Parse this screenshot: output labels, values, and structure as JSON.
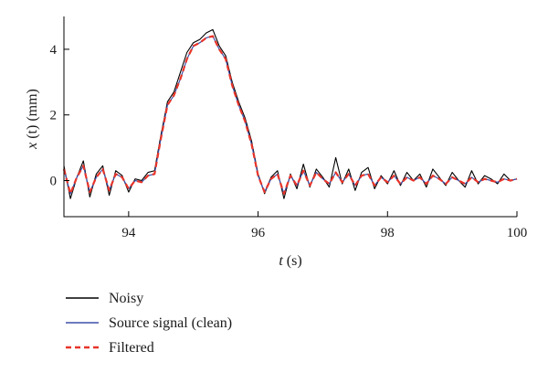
{
  "chart_data": {
    "type": "line",
    "title": "",
    "xlabel": "t (s)",
    "ylabel": "x (t) (mm)",
    "xlim": [
      93,
      100
    ],
    "ylim": [
      -1.1,
      5.0
    ],
    "xticks": [
      94,
      96,
      98,
      100
    ],
    "yticks": [
      0,
      2,
      4
    ],
    "grid": false,
    "legend_position": "bottom-left, below plot",
    "series": [
      {
        "name": "Noisy",
        "color": "#000000",
        "style": "solid",
        "x": [
          93.0,
          93.1,
          93.2,
          93.3,
          93.4,
          93.5,
          93.6,
          93.7,
          93.8,
          93.9,
          94.0,
          94.1,
          94.2,
          94.3,
          94.4,
          94.5,
          94.6,
          94.7,
          94.8,
          94.9,
          95.0,
          95.1,
          95.2,
          95.3,
          95.4,
          95.5,
          95.6,
          95.7,
          95.8,
          95.9,
          96.0,
          96.1,
          96.2,
          96.3,
          96.4,
          96.5,
          96.6,
          96.7,
          96.8,
          96.9,
          97.0,
          97.1,
          97.2,
          97.3,
          97.4,
          97.5,
          97.6,
          97.7,
          97.8,
          97.9,
          98.0,
          98.1,
          98.2,
          98.3,
          98.4,
          98.5,
          98.6,
          98.7,
          98.8,
          98.9,
          99.0,
          99.1,
          99.2,
          99.3,
          99.4,
          99.5,
          99.6,
          99.7,
          99.8,
          99.9,
          100.0
        ],
        "y": [
          0.45,
          -0.55,
          0.1,
          0.6,
          -0.5,
          0.2,
          0.45,
          -0.45,
          0.3,
          0.15,
          -0.35,
          0.05,
          0.0,
          0.25,
          0.3,
          1.4,
          2.4,
          2.7,
          3.3,
          3.9,
          4.2,
          4.3,
          4.5,
          4.6,
          4.1,
          3.8,
          3.0,
          2.4,
          1.9,
          1.2,
          0.2,
          -0.4,
          0.1,
          0.3,
          -0.55,
          0.2,
          -0.25,
          0.5,
          -0.2,
          0.35,
          0.1,
          -0.2,
          0.7,
          -0.1,
          0.35,
          -0.3,
          0.25,
          0.4,
          -0.25,
          0.15,
          -0.1,
          0.3,
          -0.15,
          0.25,
          0.0,
          0.2,
          -0.2,
          0.35,
          0.1,
          -0.15,
          0.25,
          0.0,
          -0.2,
          0.3,
          -0.1,
          0.15,
          0.05,
          -0.1,
          0.2,
          0.0,
          0.05
        ]
      },
      {
        "name": "Source signal (clean)",
        "color": "#3f4fa8",
        "style": "solid",
        "x": [
          93.0,
          93.1,
          93.2,
          93.3,
          93.4,
          93.5,
          93.6,
          93.7,
          93.8,
          93.9,
          94.0,
          94.1,
          94.2,
          94.3,
          94.4,
          94.5,
          94.6,
          94.7,
          94.8,
          94.9,
          95.0,
          95.1,
          95.2,
          95.3,
          95.4,
          95.5,
          95.6,
          95.7,
          95.8,
          95.9,
          96.0,
          96.1,
          96.2,
          96.3,
          96.4,
          96.5,
          96.6,
          96.7,
          96.8,
          96.9,
          97.0,
          97.1,
          97.2,
          97.3,
          97.4,
          97.5,
          97.6,
          97.7,
          97.8,
          97.9,
          98.0,
          98.1,
          98.2,
          98.3,
          98.4,
          98.5,
          98.6,
          98.7,
          98.8,
          98.9,
          99.0,
          99.1,
          99.2,
          99.3,
          99.4,
          99.5,
          99.6,
          99.7,
          99.8,
          99.9,
          100.0
        ],
        "y": [
          0.35,
          -0.4,
          0.1,
          0.45,
          -0.35,
          0.1,
          0.35,
          -0.3,
          0.2,
          0.1,
          -0.25,
          0.0,
          -0.05,
          0.15,
          0.2,
          1.3,
          2.3,
          2.6,
          3.1,
          3.7,
          4.1,
          4.2,
          4.35,
          4.4,
          4.0,
          3.7,
          2.9,
          2.3,
          1.8,
          1.1,
          0.15,
          -0.35,
          0.05,
          0.2,
          -0.4,
          0.15,
          -0.15,
          0.3,
          -0.15,
          0.25,
          0.05,
          -0.1,
          0.25,
          -0.05,
          0.2,
          -0.15,
          0.15,
          0.2,
          -0.15,
          0.1,
          -0.05,
          0.15,
          -0.1,
          0.1,
          0.0,
          0.1,
          -0.1,
          0.15,
          0.05,
          -0.1,
          0.1,
          0.0,
          -0.1,
          0.1,
          -0.05,
          0.05,
          0.0,
          -0.05,
          0.05,
          0.0,
          0.05
        ]
      },
      {
        "name": "Filtered",
        "color": "#e8342a",
        "style": "dashed",
        "x": [
          93.0,
          93.1,
          93.2,
          93.3,
          93.4,
          93.5,
          93.6,
          93.7,
          93.8,
          93.9,
          94.0,
          94.1,
          94.2,
          94.3,
          94.4,
          94.5,
          94.6,
          94.7,
          94.8,
          94.9,
          95.0,
          95.1,
          95.2,
          95.3,
          95.4,
          95.5,
          95.6,
          95.7,
          95.8,
          95.9,
          96.0,
          96.1,
          96.2,
          96.3,
          96.4,
          96.5,
          96.6,
          96.7,
          96.8,
          96.9,
          97.0,
          97.1,
          97.2,
          97.3,
          97.4,
          97.5,
          97.6,
          97.7,
          97.8,
          97.9,
          98.0,
          98.1,
          98.2,
          98.3,
          98.4,
          98.5,
          98.6,
          98.7,
          98.8,
          98.9,
          99.0,
          99.1,
          99.2,
          99.3,
          99.4,
          99.5,
          99.6,
          99.7,
          99.8,
          99.9,
          100.0
        ],
        "y": [
          0.35,
          -0.4,
          0.1,
          0.45,
          -0.35,
          0.1,
          0.35,
          -0.3,
          0.2,
          0.1,
          -0.25,
          0.0,
          -0.05,
          0.15,
          0.2,
          1.3,
          2.3,
          2.6,
          3.1,
          3.7,
          4.1,
          4.2,
          4.35,
          4.4,
          4.0,
          3.7,
          2.9,
          2.3,
          1.8,
          1.1,
          0.15,
          -0.35,
          0.05,
          0.2,
          -0.4,
          0.15,
          -0.15,
          0.3,
          -0.15,
          0.25,
          0.05,
          -0.1,
          0.25,
          -0.05,
          0.2,
          -0.15,
          0.15,
          0.2,
          -0.15,
          0.1,
          -0.05,
          0.15,
          -0.1,
          0.1,
          0.0,
          0.1,
          -0.1,
          0.15,
          0.05,
          -0.1,
          0.1,
          0.0,
          -0.1,
          0.1,
          -0.05,
          0.05,
          0.0,
          -0.05,
          0.05,
          0.0,
          0.05
        ]
      }
    ]
  },
  "labels": {
    "ylabel_italic": "x",
    "ylabel_rest": " (t) (mm)",
    "xlabel_italic": "t",
    "xlabel_rest": " (s)"
  }
}
